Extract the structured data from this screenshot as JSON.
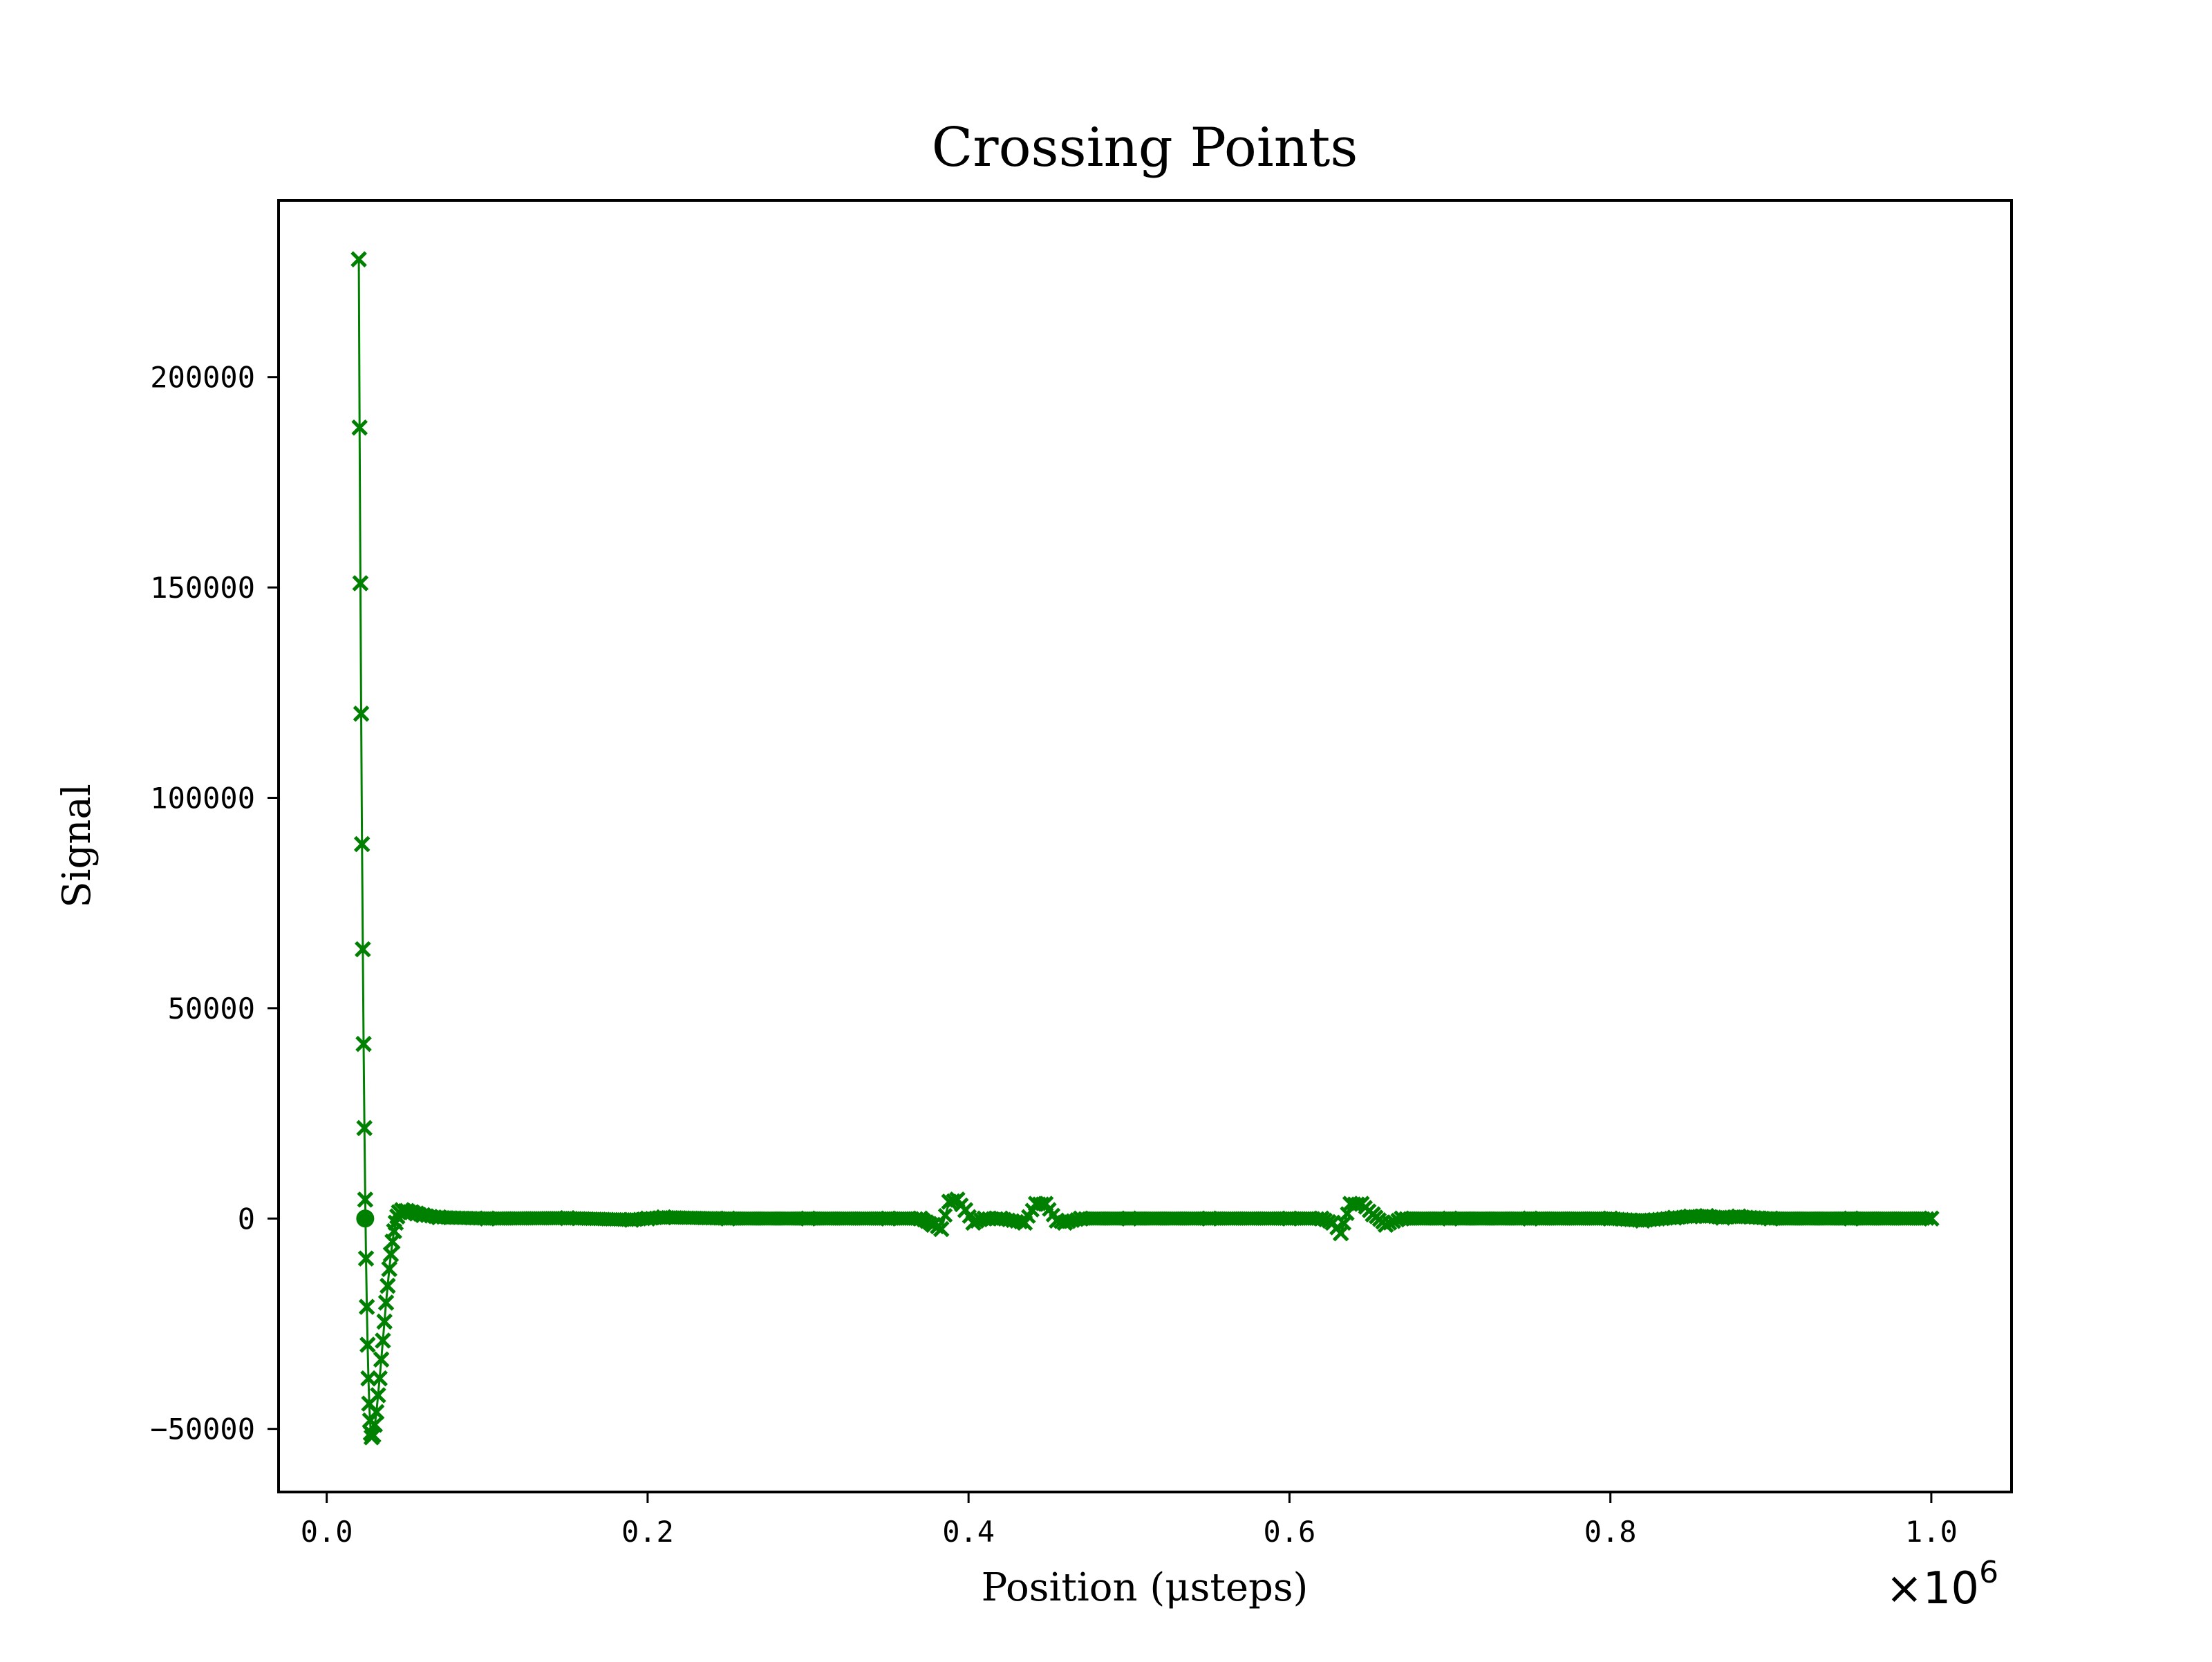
{
  "chart_data": {
    "type": "line",
    "title": "Crossing Points",
    "xlabel": "Position (μsteps)",
    "ylabel": "Signal",
    "x_scale_offset": "×10",
    "x_scale_exponent": "6",
    "xlim": [
      -0.03,
      1.05
    ],
    "ylim": [
      -65000,
      242000
    ],
    "x_ticks": [
      {
        "value": 0.0,
        "label": "0.0"
      },
      {
        "value": 0.2,
        "label": "0.2"
      },
      {
        "value": 0.4,
        "label": "0.4"
      },
      {
        "value": 0.6,
        "label": "0.6"
      },
      {
        "value": 0.8,
        "label": "0.8"
      },
      {
        "value": 1.0,
        "label": "1.0"
      }
    ],
    "y_ticks": [
      {
        "value": -50000,
        "label": "−50000"
      },
      {
        "value": 0,
        "label": "0"
      },
      {
        "value": 50000,
        "label": "50000"
      },
      {
        "value": 100000,
        "label": "100000"
      },
      {
        "value": 150000,
        "label": "150000"
      },
      {
        "value": 200000,
        "label": "200000"
      }
    ],
    "grid": false,
    "series": [
      {
        "color": "#008000",
        "marker": "x",
        "points": [
          [
            0.02,
            228000
          ],
          [
            0.0205,
            188000
          ],
          [
            0.021,
            151000
          ],
          [
            0.0215,
            120000
          ],
          [
            0.022,
            89000
          ],
          [
            0.0225,
            64000
          ],
          [
            0.023,
            41500
          ],
          [
            0.0235,
            21500
          ],
          [
            0.024,
            4500
          ],
          [
            0.0245,
            -9500
          ],
          [
            0.025,
            -21000
          ],
          [
            0.0255,
            -30000
          ],
          [
            0.026,
            -38000
          ],
          [
            0.0265,
            -44000
          ],
          [
            0.027,
            -48000
          ],
          [
            0.0275,
            -51000
          ],
          [
            0.028,
            -52000
          ],
          [
            0.029,
            -51500
          ],
          [
            0.03,
            -49000
          ],
          [
            0.031,
            -46000
          ],
          [
            0.032,
            -42000
          ],
          [
            0.033,
            -38000
          ],
          [
            0.034,
            -33500
          ],
          [
            0.035,
            -29000
          ],
          [
            0.036,
            -24500
          ],
          [
            0.037,
            -20000
          ],
          [
            0.038,
            -16000
          ],
          [
            0.039,
            -12000
          ],
          [
            0.04,
            -8500
          ],
          [
            0.041,
            -5500
          ],
          [
            0.042,
            -3000
          ],
          [
            0.043,
            -1000
          ],
          [
            0.044,
            500
          ],
          [
            0.045,
            1500
          ],
          [
            0.047,
            2000
          ],
          [
            0.05,
            1800
          ],
          [
            0.053,
            1500
          ],
          [
            0.056,
            1200
          ],
          [
            0.06,
            800
          ],
          [
            0.07,
            300
          ],
          [
            0.1,
            0
          ],
          [
            0.15,
            100
          ],
          [
            0.19,
            -300
          ],
          [
            0.2,
            0
          ],
          [
            0.21,
            300
          ],
          [
            0.25,
            0
          ],
          [
            0.3,
            0
          ],
          [
            0.35,
            0
          ],
          [
            0.37,
            0
          ],
          [
            0.378,
            -1500
          ],
          [
            0.383,
            -2500
          ],
          [
            0.388,
            4000
          ],
          [
            0.393,
            4500
          ],
          [
            0.398,
            2000
          ],
          [
            0.403,
            -1000
          ],
          [
            0.41,
            0
          ],
          [
            0.42,
            0
          ],
          [
            0.435,
            -1000
          ],
          [
            0.442,
            3500
          ],
          [
            0.448,
            3500
          ],
          [
            0.455,
            -500
          ],
          [
            0.46,
            -1000
          ],
          [
            0.47,
            0
          ],
          [
            0.5,
            0
          ],
          [
            0.55,
            0
          ],
          [
            0.6,
            0
          ],
          [
            0.62,
            0
          ],
          [
            0.627,
            -1000
          ],
          [
            0.632,
            -3500
          ],
          [
            0.638,
            3500
          ],
          [
            0.645,
            3500
          ],
          [
            0.652,
            1000
          ],
          [
            0.66,
            -1500
          ],
          [
            0.67,
            0
          ],
          [
            0.7,
            0
          ],
          [
            0.75,
            0
          ],
          [
            0.8,
            0
          ],
          [
            0.82,
            -500
          ],
          [
            0.84,
            200
          ],
          [
            0.85,
            500
          ],
          [
            0.86,
            600
          ],
          [
            0.87,
            200
          ],
          [
            0.88,
            500
          ],
          [
            0.9,
            0
          ],
          [
            0.95,
            0
          ],
          [
            1.0,
            0
          ]
        ]
      }
    ],
    "annotation_point": {
      "x": 0.024,
      "y": 0,
      "marker": "circle"
    }
  }
}
